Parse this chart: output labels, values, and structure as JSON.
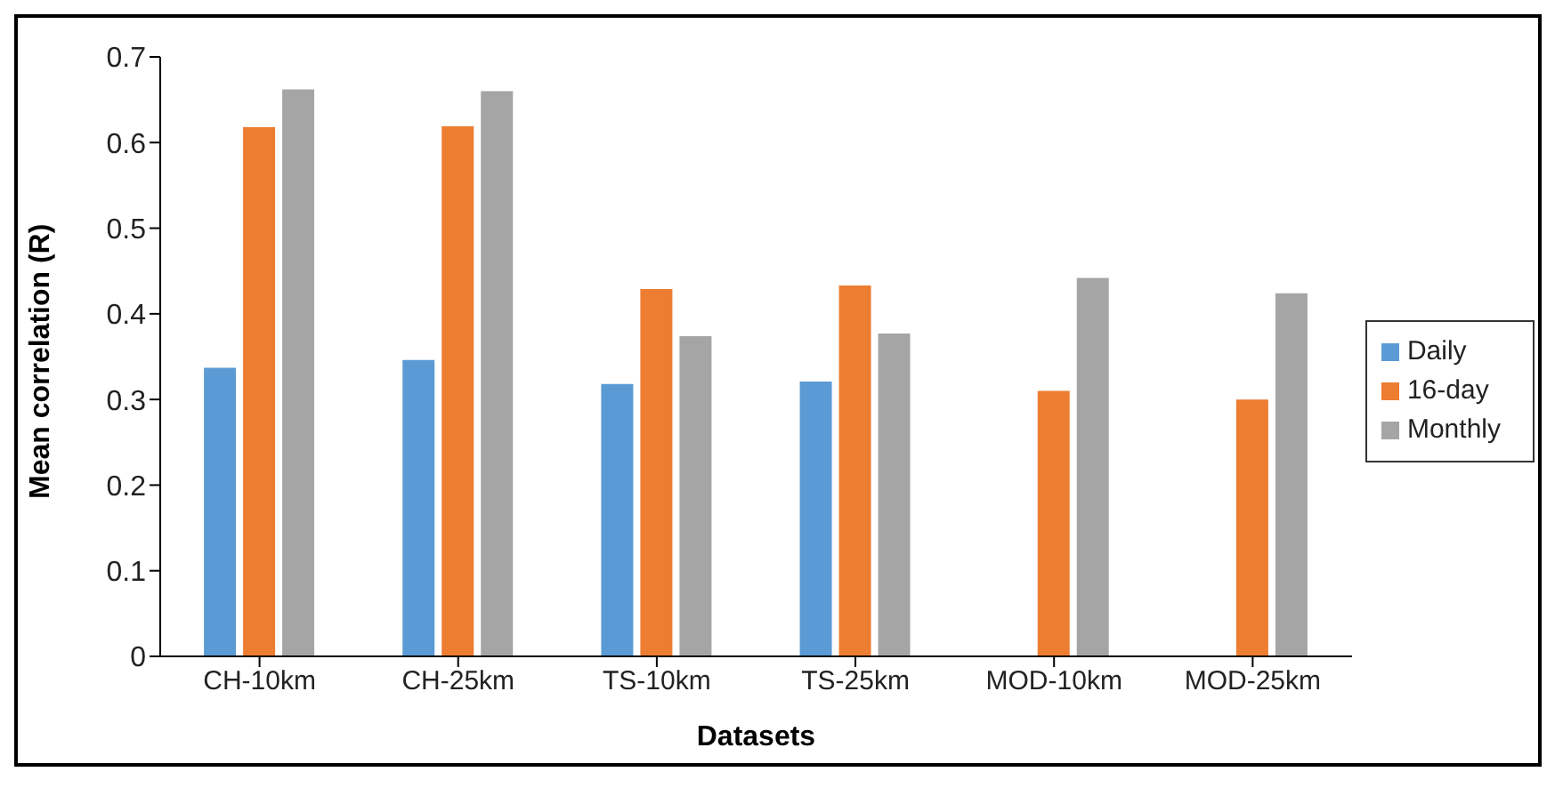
{
  "chart_data": {
    "type": "bar",
    "xlabel": "Datasets",
    "ylabel": "Mean correlation (R)",
    "categories": [
      "CH-10km",
      "CH-25km",
      "TS-10km",
      "TS-25km",
      "MOD-10km",
      "MOD-25km"
    ],
    "series": [
      {
        "name": "Daily",
        "color": "#5b9bd5",
        "values": [
          0.337,
          0.346,
          0.318,
          0.321,
          null,
          null
        ]
      },
      {
        "name": "16-day",
        "color": "#ed7d31",
        "values": [
          0.618,
          0.619,
          0.429,
          0.433,
          0.31,
          0.3
        ]
      },
      {
        "name": "Monthly",
        "color": "#a5a5a5",
        "values": [
          0.662,
          0.66,
          0.374,
          0.377,
          0.442,
          0.424
        ]
      }
    ],
    "ylim": [
      0,
      0.7
    ],
    "yticks": [
      0,
      0.1,
      0.2,
      0.3,
      0.4,
      0.5,
      0.6,
      0.7
    ],
    "grid": false,
    "legend": "right"
  }
}
